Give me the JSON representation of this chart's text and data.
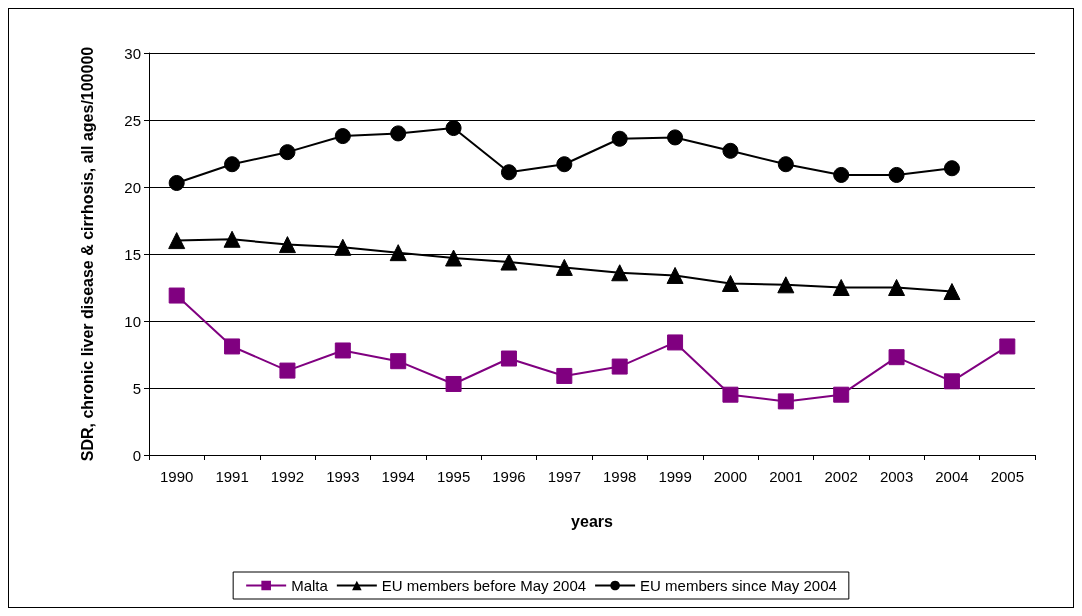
{
  "chart_data": {
    "type": "line",
    "xlabel": "years",
    "ylabel": "SDR, chronic liver disease & cirrhosis, all ages/100000",
    "categories": [
      "1990",
      "1991",
      "1992",
      "1993",
      "1994",
      "1995",
      "1996",
      "1997",
      "1998",
      "1999",
      "2000",
      "2001",
      "2002",
      "2003",
      "2004",
      "2005"
    ],
    "series": [
      {
        "name": "Malta",
        "color": "#800080",
        "marker": "square",
        "values": [
          11.9,
          8.1,
          6.3,
          7.8,
          7.0,
          5.3,
          7.2,
          5.9,
          6.6,
          8.4,
          4.5,
          4.0,
          4.5,
          7.3,
          5.5,
          8.1
        ]
      },
      {
        "name": "EU members before May 2004",
        "color": "#000000",
        "marker": "triangle",
        "values": [
          16.0,
          16.1,
          15.7,
          15.5,
          15.1,
          14.7,
          14.4,
          14.0,
          13.6,
          13.4,
          12.8,
          12.7,
          12.5,
          12.5,
          12.2,
          null
        ]
      },
      {
        "name": "EU members since May 2004",
        "color": "#000000",
        "marker": "circle",
        "values": [
          20.3,
          21.7,
          22.6,
          23.8,
          24.0,
          24.4,
          21.1,
          21.7,
          23.6,
          23.7,
          22.7,
          21.7,
          20.9,
          20.9,
          21.4,
          null
        ]
      }
    ],
    "ylim": [
      0,
      30
    ],
    "yticks": [
      0,
      5,
      10,
      15,
      20,
      25,
      30
    ],
    "grid": "y",
    "legend": "bottom"
  }
}
